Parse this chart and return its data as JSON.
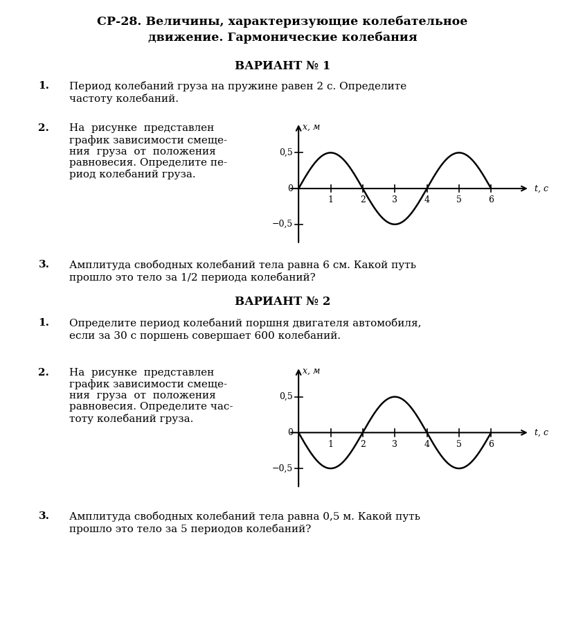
{
  "title_line1": "СР-28. Величины, характеризующие колебательное",
  "title_line2": "движение. Гармонические колебания",
  "variant1": "ВАРИАНТ № 1",
  "variant2": "ВАРИАНТ № 2",
  "q1_v1_num": "1.",
  "q1_v1": "Период колебаний груза на пружине равен 2 с. Определите\nчастоту колебаний.",
  "q2_v1_num": "2.",
  "q2_v1_left": "На  рисунке  представлен\nграфик зависимости смеще-\nния  груза  от  положения\nравновесия. Определите пе-\nриод колебаний груза.",
  "q3_v1_num": "3.",
  "q3_v1": "Амплитуда свободных колебаний тела равна 6 см. Какой путь\nпрошло это тело за 1/2 периода колебаний?",
  "q1_v2_num": "1.",
  "q1_v2": "Определите период колебаний поршня двигателя автомобиля,\nесли за 30 с поршень совершает 600 колебаний.",
  "q2_v2_num": "2.",
  "q2_v2_left": "На  рисунке  представлен\nграфик зависимости смеще-\nния  груза  от  положения\nравновесия. Определите час-\nтоту колебаний груза.",
  "q3_v2_num": "3.",
  "q3_v2": "Амплитуда свободных колебаний тела равна 0,5 м. Какой путь\nпрошло это тело за 5 периодов колебаний?",
  "bg_color": "#ffffff",
  "text_color": "#000000",
  "graph1_period": 4,
  "graph1_start_positive": true,
  "graph2_period": 4,
  "graph2_start_positive": false
}
